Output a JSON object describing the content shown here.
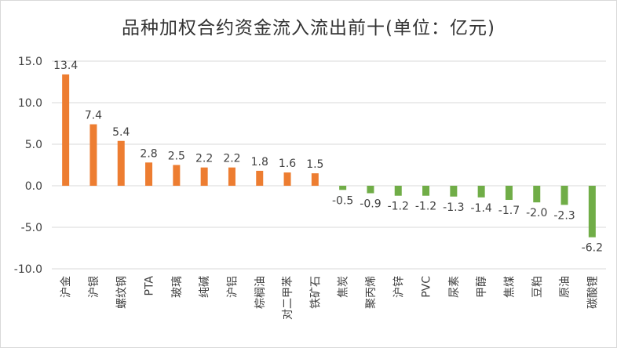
{
  "chart_data": {
    "type": "bar",
    "title": "品种加权合约资金流入流出前十(单位：亿元)",
    "categories": [
      "沪金",
      "沪银",
      "螺纹钢",
      "PTA",
      "玻璃",
      "纯碱",
      "沪铝",
      "棕榈油",
      "对二甲苯",
      "铁矿石",
      "焦炭",
      "聚丙烯",
      "沪锌",
      "PVC",
      "尿素",
      "甲醇",
      "焦煤",
      "豆粕",
      "原油",
      "碳酸锂"
    ],
    "values": [
      13.4,
      7.4,
      5.4,
      2.8,
      2.5,
      2.2,
      2.2,
      1.8,
      1.6,
      1.5,
      -0.5,
      -0.9,
      -1.2,
      -1.2,
      -1.3,
      -1.4,
      -1.7,
      -2.0,
      -2.3,
      -6.2
    ],
    "value_labels": [
      "13.4",
      "7.4",
      "5.4",
      "2.8",
      "2.5",
      "2.2",
      "2.2",
      "1.8",
      "1.6",
      "1.5",
      "-0.5",
      "-0.9",
      "-1.2",
      "-1.2",
      "-1.3",
      "-1.4",
      "-1.7",
      "-2.0",
      "-2.3",
      "-6.2"
    ],
    "ylim": [
      -10,
      15
    ],
    "yticks": [
      "15.0",
      "10.0",
      "5.0",
      "0.0",
      "-5.0",
      "-10.0"
    ],
    "ytick_values": [
      15,
      10,
      5,
      0,
      -5,
      -10
    ],
    "grid": true,
    "colors": {
      "positive": "#ED7D31",
      "negative": "#70AD47",
      "grid": "#d9d9d9",
      "text": "#404040"
    }
  }
}
